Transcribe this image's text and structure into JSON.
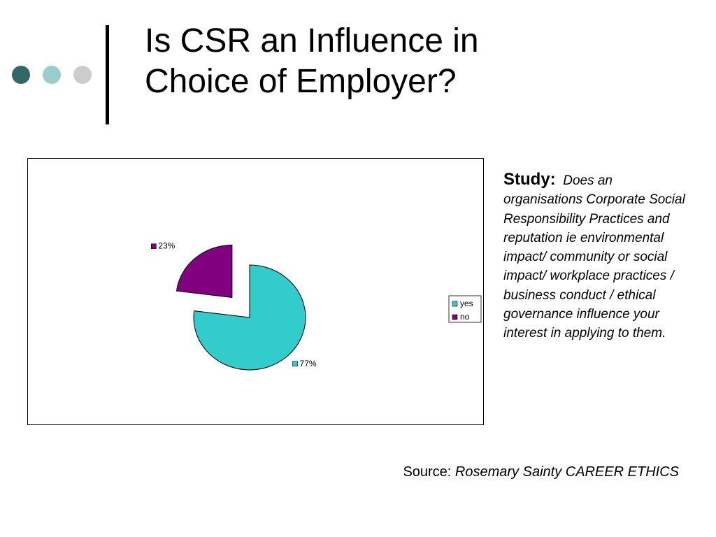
{
  "slide": {
    "title_line1": "Is CSR an Influence in",
    "title_line2": "Choice of Employer?",
    "bullet_colors": [
      "#336666",
      "#99CCCC",
      "#CCCCCC"
    ],
    "accent_bar_color": "#000000"
  },
  "study": {
    "label": "Study:",
    "text": "Does an organisations Corporate Social Responsibility Practices and reputation  ie environmental impact/ community or social impact/ workplace practices / business conduct / ethical governance influence your interest in applying to them."
  },
  "source": {
    "prefix": "Source: ",
    "text": "Rosemary Sainty CAREER ETHICS"
  },
  "chart_data": {
    "type": "pie",
    "slices": [
      {
        "name": "yes",
        "value": 77,
        "label": "77%",
        "color": "#33CCCC"
      },
      {
        "name": "no",
        "value": 23,
        "label": "23%",
        "color": "#800080"
      }
    ],
    "exploded": "no",
    "legend": {
      "position": "right",
      "entries": [
        "yes",
        "no"
      ]
    },
    "title": "",
    "xlabel": "",
    "ylabel": ""
  }
}
